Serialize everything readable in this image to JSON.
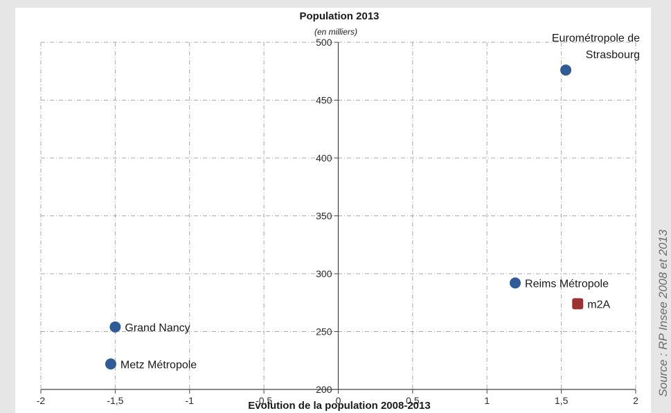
{
  "chart_data": {
    "type": "scatter",
    "title": "Population 2013",
    "subtitle": "(en milliers)",
    "xlabel": "Evolution de la population 2008-2013",
    "ylabel": "",
    "xlim": [
      -2,
      2
    ],
    "ylim": [
      200,
      500
    ],
    "xticks": [
      -2,
      -1.5,
      -1,
      -0.5,
      0,
      0.5,
      1,
      1.5,
      2
    ],
    "xtick_labels": [
      "-2",
      "-1,5",
      "-1",
      "-0,5",
      "0",
      "0,5",
      "1",
      "1,5",
      "2"
    ],
    "yticks": [
      200,
      250,
      300,
      350,
      400,
      450,
      500
    ],
    "ytick_labels": [
      "200",
      "250",
      "300",
      "350",
      "400",
      "450",
      "500"
    ],
    "grid": true,
    "points": [
      {
        "label_lines": [
          "Eurométropole de",
          "Strasbourg"
        ],
        "x": 1.53,
        "y": 476,
        "color": "#2f5b97",
        "shape": "circle"
      },
      {
        "label_lines": [
          "Reims Métropole"
        ],
        "x": 1.19,
        "y": 292,
        "color": "#2f5b97",
        "shape": "circle"
      },
      {
        "label_lines": [
          "m2A"
        ],
        "x": 1.61,
        "y": 274,
        "color": "#9a3330",
        "shape": "square"
      },
      {
        "label_lines": [
          "Grand Nancy"
        ],
        "x": -1.5,
        "y": 254,
        "color": "#2f5b97",
        "shape": "circle"
      },
      {
        "label_lines": [
          "Metz Métropole"
        ],
        "x": -1.53,
        "y": 222,
        "color": "#2f5b97",
        "shape": "circle"
      }
    ]
  },
  "source": "Source : RP Insee 2008 et 2013"
}
